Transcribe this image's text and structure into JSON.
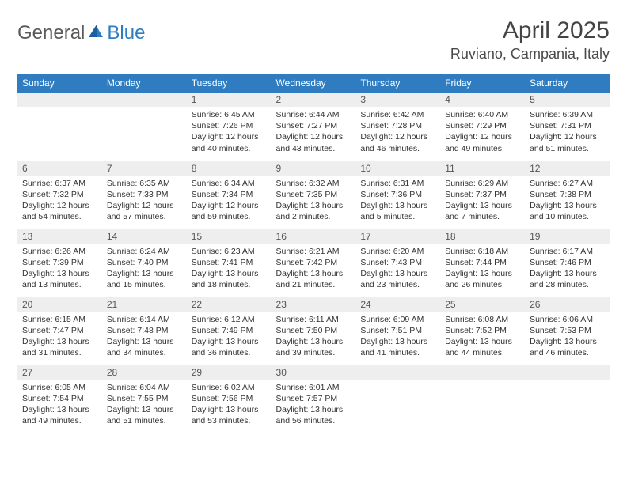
{
  "brand": {
    "part1": "General",
    "part2": "Blue"
  },
  "colors": {
    "header_bg": "#2f7dc0",
    "header_text": "#ffffff",
    "daynum_bg": "#eeeeee",
    "cell_border": "#2f7dc0",
    "text": "#333333",
    "title": "#444444"
  },
  "title": "April 2025",
  "location": "Ruviano, Campania, Italy",
  "weekdays": [
    "Sunday",
    "Monday",
    "Tuesday",
    "Wednesday",
    "Thursday",
    "Friday",
    "Saturday"
  ],
  "weeks": [
    [
      null,
      null,
      {
        "num": "1",
        "sunrise": "Sunrise: 6:45 AM",
        "sunset": "Sunset: 7:26 PM",
        "daylight": "Daylight: 12 hours and 40 minutes."
      },
      {
        "num": "2",
        "sunrise": "Sunrise: 6:44 AM",
        "sunset": "Sunset: 7:27 PM",
        "daylight": "Daylight: 12 hours and 43 minutes."
      },
      {
        "num": "3",
        "sunrise": "Sunrise: 6:42 AM",
        "sunset": "Sunset: 7:28 PM",
        "daylight": "Daylight: 12 hours and 46 minutes."
      },
      {
        "num": "4",
        "sunrise": "Sunrise: 6:40 AM",
        "sunset": "Sunset: 7:29 PM",
        "daylight": "Daylight: 12 hours and 49 minutes."
      },
      {
        "num": "5",
        "sunrise": "Sunrise: 6:39 AM",
        "sunset": "Sunset: 7:31 PM",
        "daylight": "Daylight: 12 hours and 51 minutes."
      }
    ],
    [
      {
        "num": "6",
        "sunrise": "Sunrise: 6:37 AM",
        "sunset": "Sunset: 7:32 PM",
        "daylight": "Daylight: 12 hours and 54 minutes."
      },
      {
        "num": "7",
        "sunrise": "Sunrise: 6:35 AM",
        "sunset": "Sunset: 7:33 PM",
        "daylight": "Daylight: 12 hours and 57 minutes."
      },
      {
        "num": "8",
        "sunrise": "Sunrise: 6:34 AM",
        "sunset": "Sunset: 7:34 PM",
        "daylight": "Daylight: 12 hours and 59 minutes."
      },
      {
        "num": "9",
        "sunrise": "Sunrise: 6:32 AM",
        "sunset": "Sunset: 7:35 PM",
        "daylight": "Daylight: 13 hours and 2 minutes."
      },
      {
        "num": "10",
        "sunrise": "Sunrise: 6:31 AM",
        "sunset": "Sunset: 7:36 PM",
        "daylight": "Daylight: 13 hours and 5 minutes."
      },
      {
        "num": "11",
        "sunrise": "Sunrise: 6:29 AM",
        "sunset": "Sunset: 7:37 PM",
        "daylight": "Daylight: 13 hours and 7 minutes."
      },
      {
        "num": "12",
        "sunrise": "Sunrise: 6:27 AM",
        "sunset": "Sunset: 7:38 PM",
        "daylight": "Daylight: 13 hours and 10 minutes."
      }
    ],
    [
      {
        "num": "13",
        "sunrise": "Sunrise: 6:26 AM",
        "sunset": "Sunset: 7:39 PM",
        "daylight": "Daylight: 13 hours and 13 minutes."
      },
      {
        "num": "14",
        "sunrise": "Sunrise: 6:24 AM",
        "sunset": "Sunset: 7:40 PM",
        "daylight": "Daylight: 13 hours and 15 minutes."
      },
      {
        "num": "15",
        "sunrise": "Sunrise: 6:23 AM",
        "sunset": "Sunset: 7:41 PM",
        "daylight": "Daylight: 13 hours and 18 minutes."
      },
      {
        "num": "16",
        "sunrise": "Sunrise: 6:21 AM",
        "sunset": "Sunset: 7:42 PM",
        "daylight": "Daylight: 13 hours and 21 minutes."
      },
      {
        "num": "17",
        "sunrise": "Sunrise: 6:20 AM",
        "sunset": "Sunset: 7:43 PM",
        "daylight": "Daylight: 13 hours and 23 minutes."
      },
      {
        "num": "18",
        "sunrise": "Sunrise: 6:18 AM",
        "sunset": "Sunset: 7:44 PM",
        "daylight": "Daylight: 13 hours and 26 minutes."
      },
      {
        "num": "19",
        "sunrise": "Sunrise: 6:17 AM",
        "sunset": "Sunset: 7:46 PM",
        "daylight": "Daylight: 13 hours and 28 minutes."
      }
    ],
    [
      {
        "num": "20",
        "sunrise": "Sunrise: 6:15 AM",
        "sunset": "Sunset: 7:47 PM",
        "daylight": "Daylight: 13 hours and 31 minutes."
      },
      {
        "num": "21",
        "sunrise": "Sunrise: 6:14 AM",
        "sunset": "Sunset: 7:48 PM",
        "daylight": "Daylight: 13 hours and 34 minutes."
      },
      {
        "num": "22",
        "sunrise": "Sunrise: 6:12 AM",
        "sunset": "Sunset: 7:49 PM",
        "daylight": "Daylight: 13 hours and 36 minutes."
      },
      {
        "num": "23",
        "sunrise": "Sunrise: 6:11 AM",
        "sunset": "Sunset: 7:50 PM",
        "daylight": "Daylight: 13 hours and 39 minutes."
      },
      {
        "num": "24",
        "sunrise": "Sunrise: 6:09 AM",
        "sunset": "Sunset: 7:51 PM",
        "daylight": "Daylight: 13 hours and 41 minutes."
      },
      {
        "num": "25",
        "sunrise": "Sunrise: 6:08 AM",
        "sunset": "Sunset: 7:52 PM",
        "daylight": "Daylight: 13 hours and 44 minutes."
      },
      {
        "num": "26",
        "sunrise": "Sunrise: 6:06 AM",
        "sunset": "Sunset: 7:53 PM",
        "daylight": "Daylight: 13 hours and 46 minutes."
      }
    ],
    [
      {
        "num": "27",
        "sunrise": "Sunrise: 6:05 AM",
        "sunset": "Sunset: 7:54 PM",
        "daylight": "Daylight: 13 hours and 49 minutes."
      },
      {
        "num": "28",
        "sunrise": "Sunrise: 6:04 AM",
        "sunset": "Sunset: 7:55 PM",
        "daylight": "Daylight: 13 hours and 51 minutes."
      },
      {
        "num": "29",
        "sunrise": "Sunrise: 6:02 AM",
        "sunset": "Sunset: 7:56 PM",
        "daylight": "Daylight: 13 hours and 53 minutes."
      },
      {
        "num": "30",
        "sunrise": "Sunrise: 6:01 AM",
        "sunset": "Sunset: 7:57 PM",
        "daylight": "Daylight: 13 hours and 56 minutes."
      },
      null,
      null,
      null
    ]
  ]
}
